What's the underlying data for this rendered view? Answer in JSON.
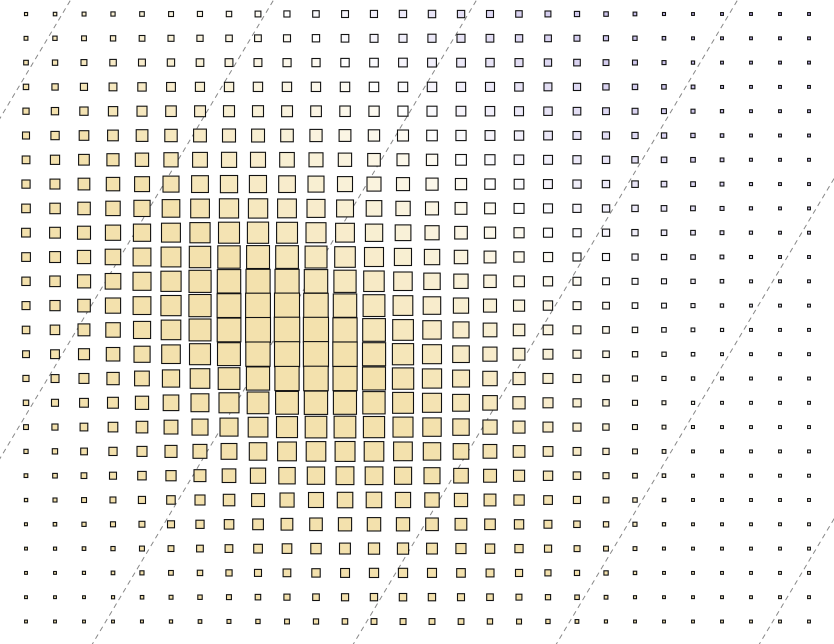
{
  "chart_data": {
    "type": "heatmap",
    "title": "",
    "xlabel": "",
    "ylabel": "",
    "grid": false,
    "legend": "none",
    "marker": "square",
    "encoding": {
      "size": "magnitude",
      "color": "value"
    },
    "grid_shape": {
      "cols": 28,
      "rows": 26
    },
    "x_range": [
      0,
      27
    ],
    "y_range": [
      0,
      25
    ],
    "value_range": [
      -1,
      1
    ],
    "field_params": {
      "axis": [
        0.5,
        2.0
      ],
      "offset": -10.5,
      "wavelength": 6.8,
      "envelope_center": [
        10.5,
        11.5
      ],
      "envelope_sigma": [
        6.5,
        7.5
      ],
      "size_gamma": 0.8
    },
    "contour_levels": [
      -22,
      -15,
      -8,
      1,
      8,
      15,
      22
    ],
    "palette": {
      "negative": [
        "#ffffff",
        "#f3e1ad"
      ],
      "positive": [
        "#ffffff",
        "#6a4fc6"
      ],
      "stroke": "#111111",
      "contour": "#888888"
    }
  }
}
